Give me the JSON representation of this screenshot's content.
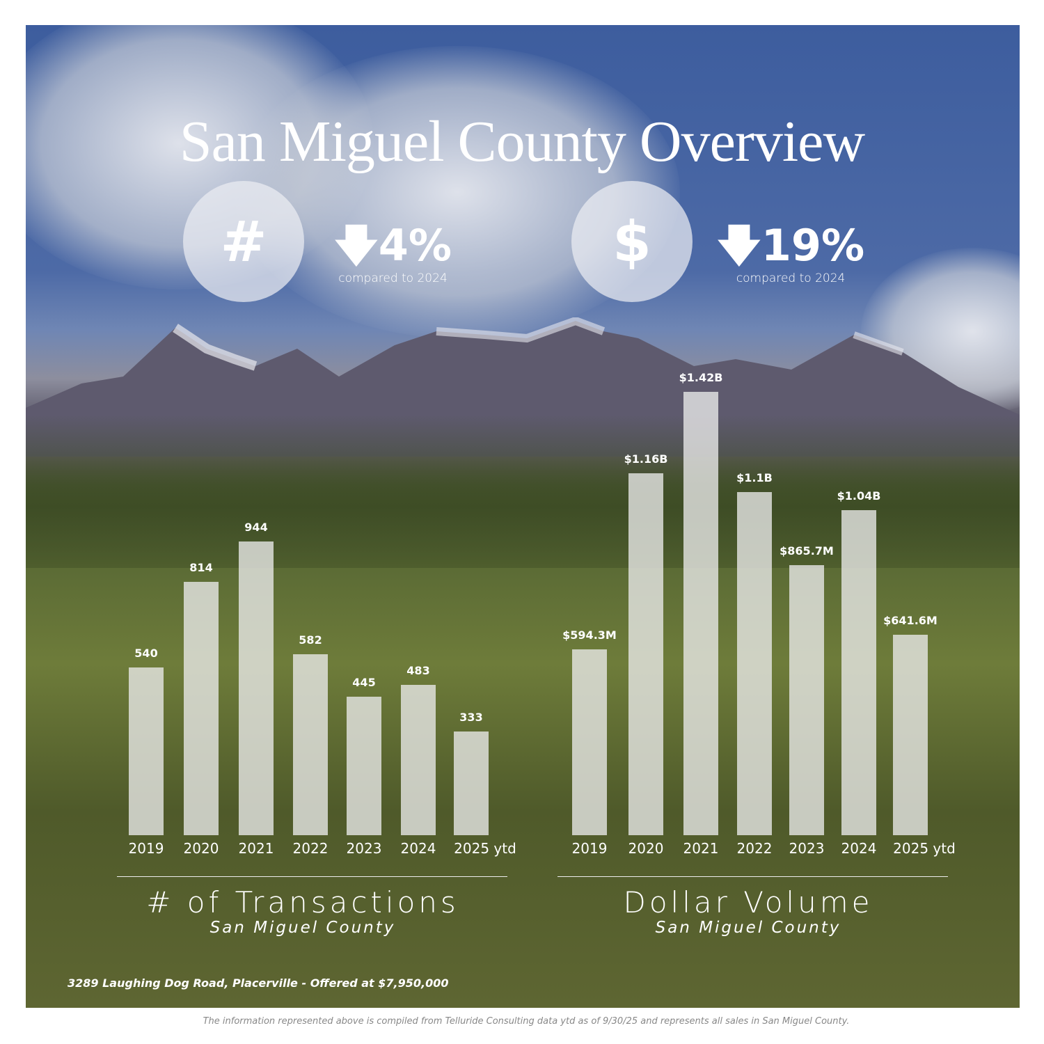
{
  "title": "San Miguel County Overview",
  "stats": [
    {
      "icon": "#",
      "icon_name": "hash-icon",
      "direction": "down",
      "value": "4%",
      "caption": "compared to 2024"
    },
    {
      "icon": "$",
      "icon_name": "dollar-icon",
      "direction": "down",
      "value": "19%",
      "caption": "compared to 2024"
    }
  ],
  "chart_data": [
    {
      "type": "bar",
      "title": "# of Transactions",
      "subtitle": "San Miguel County",
      "categories": [
        "2019",
        "2020",
        "2021",
        "2022",
        "2023",
        "2024",
        "2025 ytd"
      ],
      "values": [
        540,
        814,
        944,
        582,
        445,
        483,
        333
      ],
      "labels": [
        "540",
        "814",
        "944",
        "582",
        "445",
        "483",
        "333"
      ],
      "ylim": [
        0,
        944
      ],
      "grid": false,
      "bar_color": "#ebebeb"
    },
    {
      "type": "bar",
      "title": "Dollar Volume",
      "subtitle": "San Miguel County",
      "unit": "millions USD",
      "categories": [
        "2019",
        "2020",
        "2021",
        "2022",
        "2023",
        "2024",
        "2025 ytd"
      ],
      "values": [
        594.3,
        1160,
        1420,
        1100,
        865.7,
        1040,
        641.6
      ],
      "labels": [
        "$594.3M",
        "$1.16B",
        "$1.42B",
        "$1.1B",
        "$865.7M",
        "$1.04B",
        "$641.6M"
      ],
      "ylim": [
        0,
        1420
      ],
      "grid": false,
      "bar_color": "#ebebeb"
    }
  ],
  "listing": "3289 Laughing Dog Road, Placerville - Offered at $7,950,000",
  "footer": "The information represented above is compiled from Telluride Consulting data ytd as of 9/30/25 and represents all sales in San Miguel County."
}
